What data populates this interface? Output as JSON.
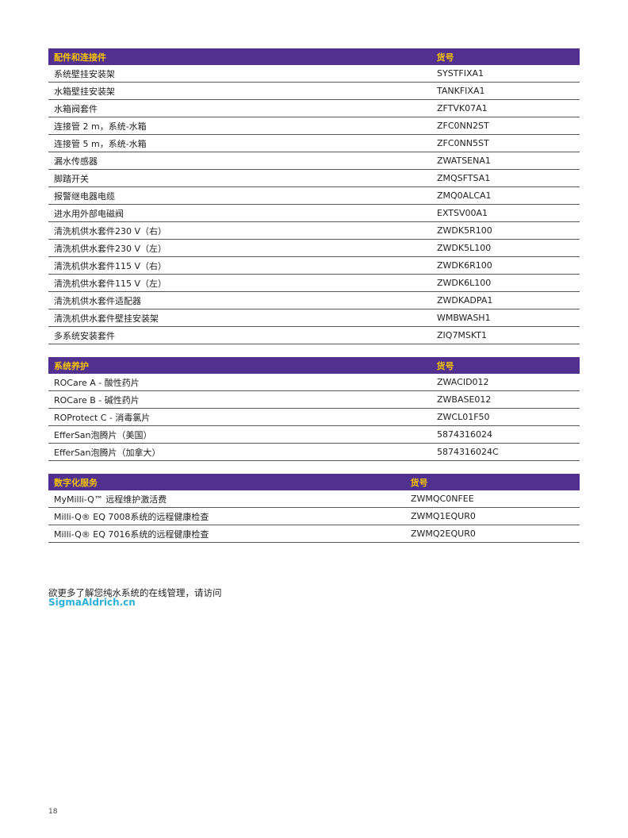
{
  "tables": [
    {
      "header": [
        "配件和连接件",
        "货号"
      ],
      "rows": [
        [
          "系统壁挂安装架",
          "SYSTFIXA1"
        ],
        [
          "水箱壁挂安装架",
          "TANKFIXA1"
        ],
        [
          "水箱阀套件",
          "ZFTVK07A1"
        ],
        [
          "连接管 2 m，系统-水箱",
          "ZFC0NN2ST"
        ],
        [
          "连接管 5 m，系统-水箱",
          "ZFC0NN5ST"
        ],
        [
          "漏水传感器",
          "ZWATSENA1"
        ],
        [
          "脚踏开关",
          "ZMQSFTSA1"
        ],
        [
          "报警继电器电缆",
          "ZMQ0ALCA1"
        ],
        [
          "进水用外部电磁阀",
          "EXTSV00A1"
        ],
        [
          "清洗机供水套件230 V（右）",
          "ZWDK5R100"
        ],
        [
          "清洗机供水套件230 V（左）",
          "ZWDK5L100"
        ],
        [
          "清洗机供水套件115 V（右）",
          "ZWDK6R100"
        ],
        [
          "清洗机供水套件115 V（左）",
          "ZWDK6L100"
        ],
        [
          "清洗机供水套件适配器",
          "ZWDKADPA1"
        ],
        [
          "清洗机供水套件壁挂安装架",
          "WMBWASH1"
        ],
        [
          "多系统安装套件",
          "ZIQ7MSKT1"
        ]
      ]
    },
    {
      "header": [
        "系统养护",
        "货号"
      ],
      "rows": [
        [
          "ROCare A - 酸性药片",
          "ZWACID012"
        ],
        [
          "ROCare B - 碱性药片",
          "ZWBASE012"
        ],
        [
          "ROProtect C - 消毒氯片",
          "ZWCL01F50"
        ],
        [
          "EfferSan泡腾片（美国）",
          "5874316024"
        ],
        [
          "EfferSan泡腾片（加拿大）",
          "5874316024C"
        ]
      ]
    },
    {
      "header": [
        "数字化服务",
        "货号"
      ],
      "rows": [
        [
          "MyMilli-Q™ 远程维护激活费",
          "ZWMQC0NFEE"
        ],
        [
          "Milli-Q® EQ 7008系统的远程健康检查",
          "ZWMQ1EQUR0"
        ],
        [
          "Milli-Q® EQ 7016系统的远程健康检查",
          "ZWMQ2EQUR0"
        ]
      ]
    }
  ],
  "note": "欲更多了解您纯水系统的在线管理，请访问",
  "link": "SigmaAldrich.cn",
  "page_number": "18",
  "colors": {
    "header_bg": "#52308f",
    "header_text": "#f5c400",
    "link": "#2bb0d6"
  }
}
